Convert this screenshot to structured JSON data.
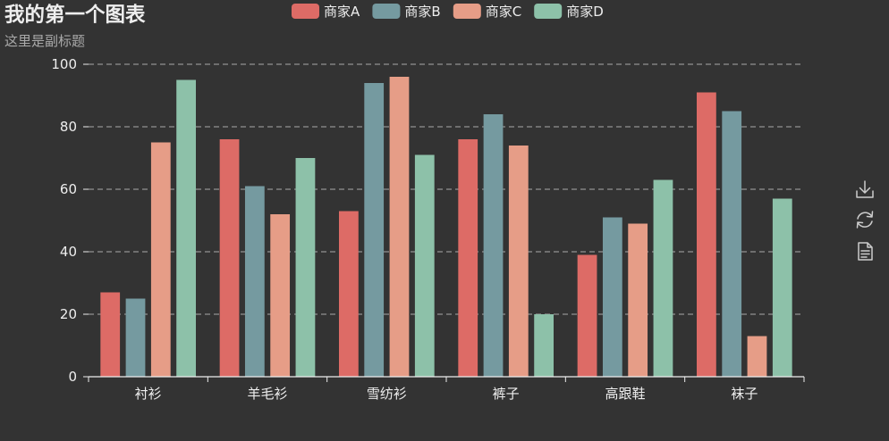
{
  "theme": {
    "background": "#333333",
    "text": "#eeeeee",
    "subtext": "#aaaaaa",
    "split_line": "#aaaaaa",
    "axis_line": "#eeeeee",
    "icon": "#cccccc"
  },
  "toolbox": {
    "download": "download-icon",
    "restore": "refresh-icon",
    "data_view": "data-view-icon"
  },
  "chart_data": {
    "type": "bar",
    "title": "我的第一个图表",
    "subtitle": "这里是副标题",
    "xlabel": "",
    "ylabel": "",
    "categories": [
      "衬衫",
      "羊毛衫",
      "雪纺衫",
      "裤子",
      "高跟鞋",
      "袜子"
    ],
    "series": [
      {
        "name": "商家A",
        "color": "#dd6b66",
        "values": [
          27,
          76,
          53,
          76,
          39,
          91
        ]
      },
      {
        "name": "商家B",
        "color": "#759aa0",
        "values": [
          25,
          61,
          94,
          84,
          51,
          85
        ]
      },
      {
        "name": "商家C",
        "color": "#e69d87",
        "values": [
          75,
          52,
          96,
          74,
          49,
          13
        ]
      },
      {
        "name": "商家D",
        "color": "#8dc1a9",
        "values": [
          95,
          70,
          71,
          20,
          63,
          57
        ]
      }
    ],
    "ylim": [
      0,
      100
    ],
    "yticks": [
      0,
      20,
      40,
      60,
      80,
      100
    ],
    "grid": true,
    "legend_position": "top-center"
  }
}
